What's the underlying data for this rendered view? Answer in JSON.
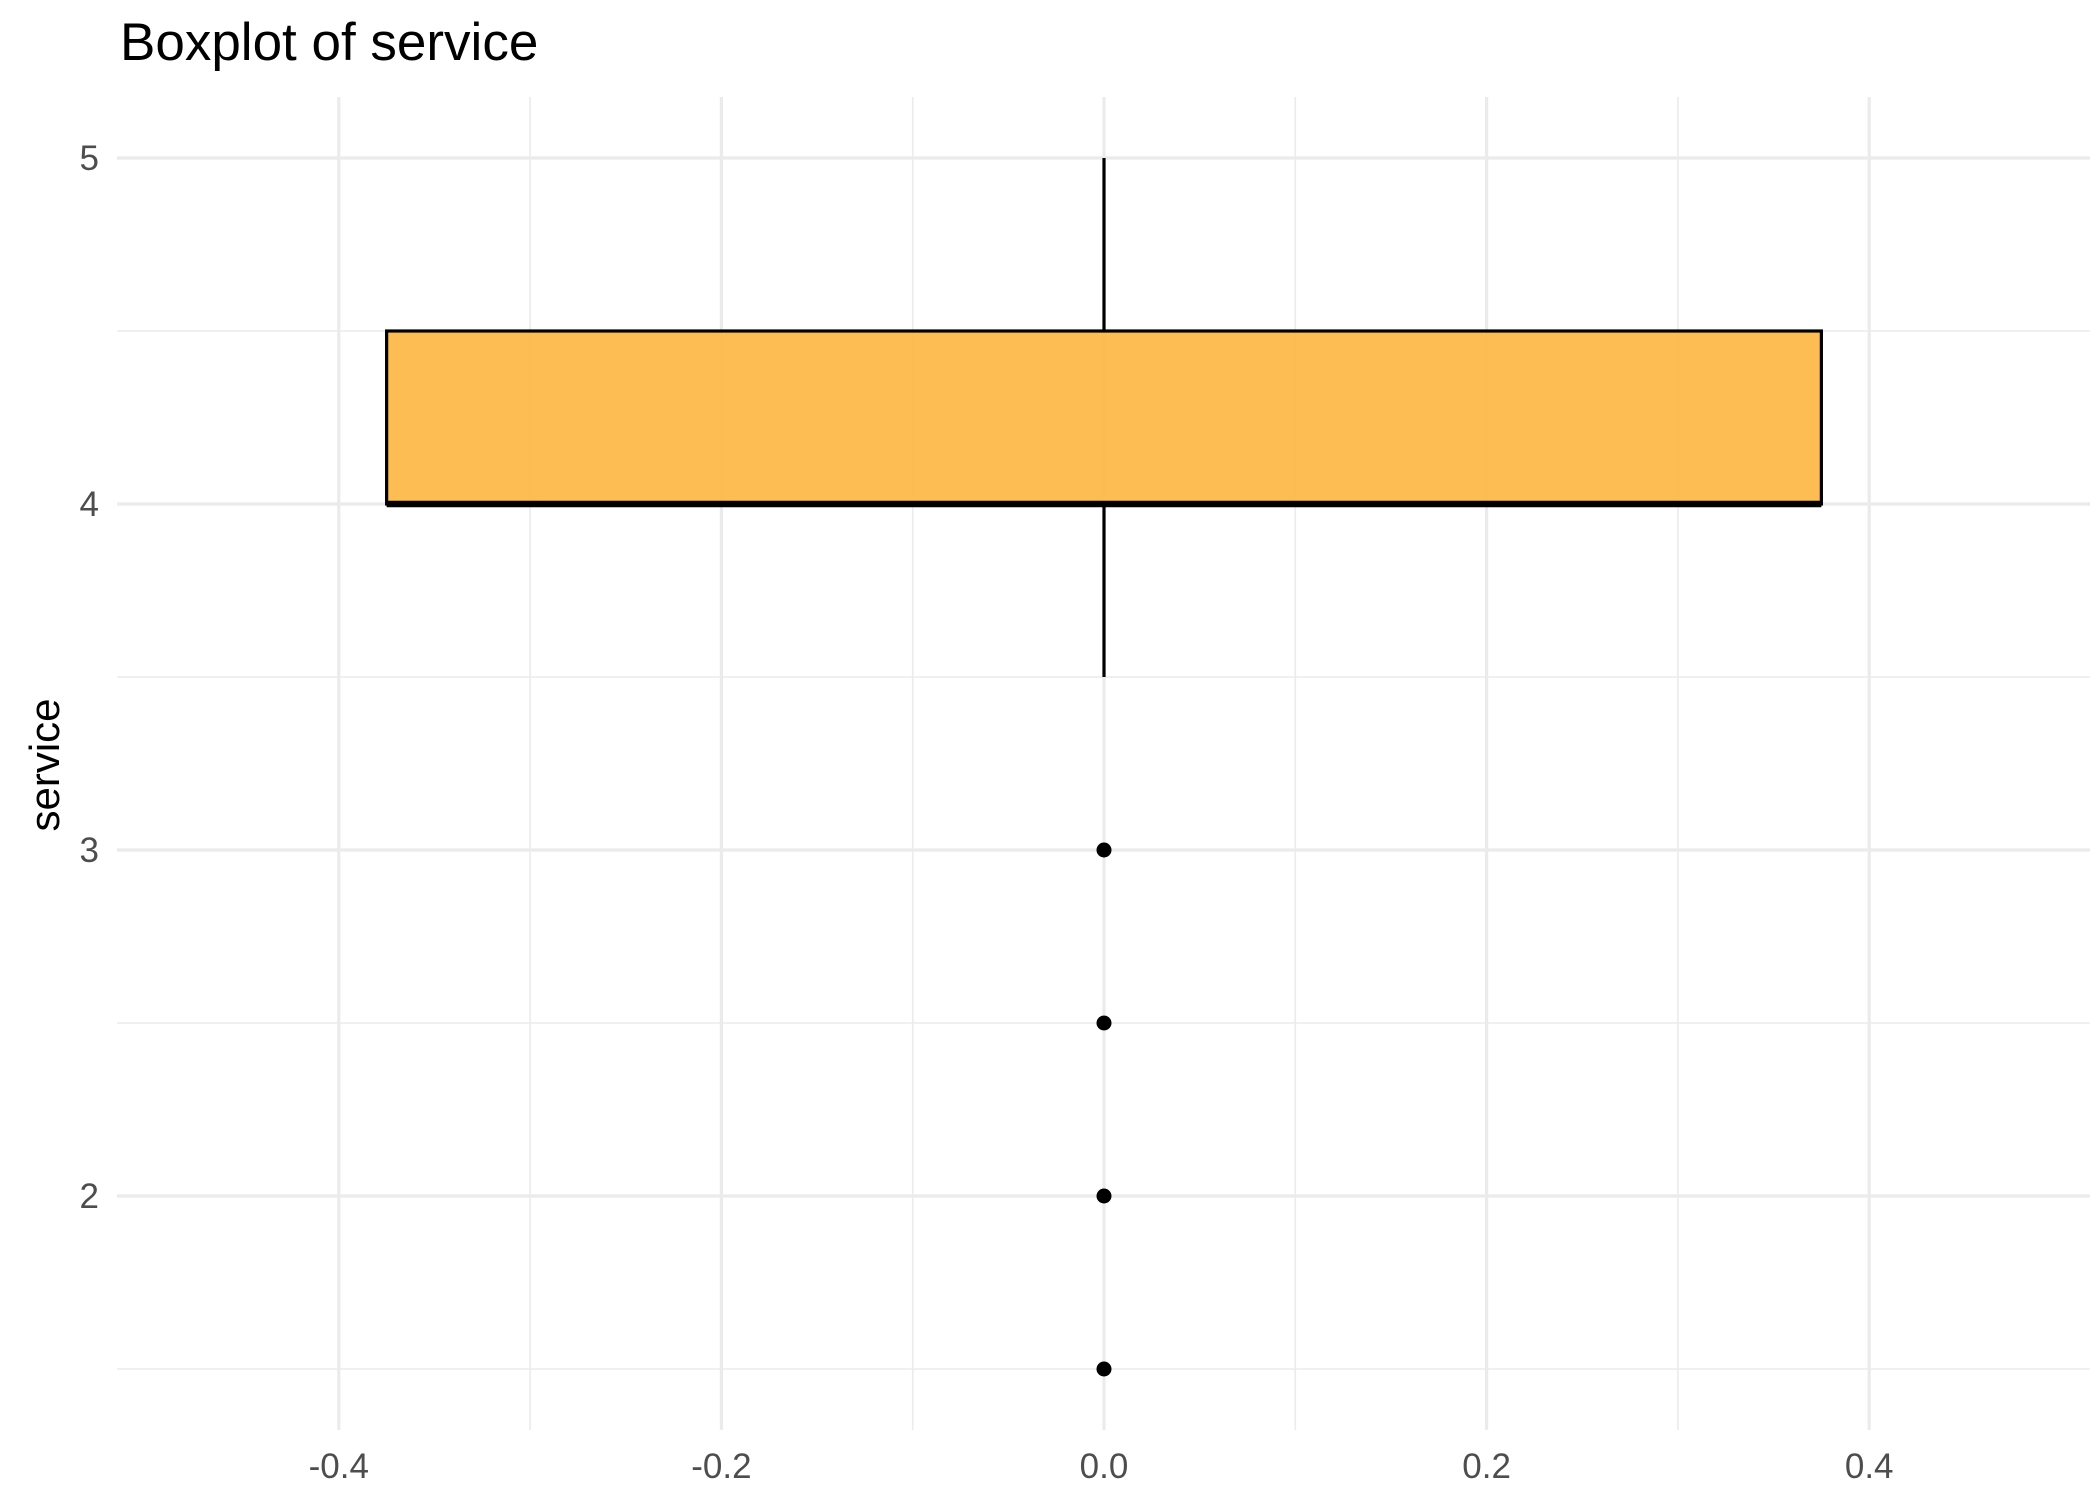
{
  "chart_data": {
    "type": "boxplot",
    "title": "Boxplot of service",
    "xlabel": "",
    "ylabel": "service",
    "xlim": [
      -0.4,
      0.4
    ],
    "ylim": [
      1.5,
      5.0
    ],
    "x_ticks": [
      -0.4,
      -0.2,
      0.0,
      0.2,
      0.4
    ],
    "x_tick_labels": [
      "-0.4",
      "-0.2",
      "0.0",
      "0.2",
      "0.4"
    ],
    "x_minor": [
      -0.3,
      -0.1,
      0.1,
      0.3
    ],
    "y_ticks": [
      2,
      3,
      4,
      5
    ],
    "y_tick_labels": [
      "2",
      "3",
      "4",
      "5"
    ],
    "y_minor": [
      1.5,
      2.5,
      3.5,
      4.5
    ],
    "grid": true,
    "legend": "none",
    "box": {
      "x_center": 0.0,
      "x_left": -0.375,
      "x_right": 0.375,
      "whisker_low": 3.5,
      "q1": 4.0,
      "median": 4.0,
      "q3": 4.5,
      "whisker_high": 5.0,
      "fill": "#FDB94A"
    },
    "outliers": [
      {
        "x": 0.0,
        "y": 3.0
      },
      {
        "x": 0.0,
        "y": 2.5
      },
      {
        "x": 0.0,
        "y": 2.0
      },
      {
        "x": 0.0,
        "y": 1.5
      }
    ]
  }
}
